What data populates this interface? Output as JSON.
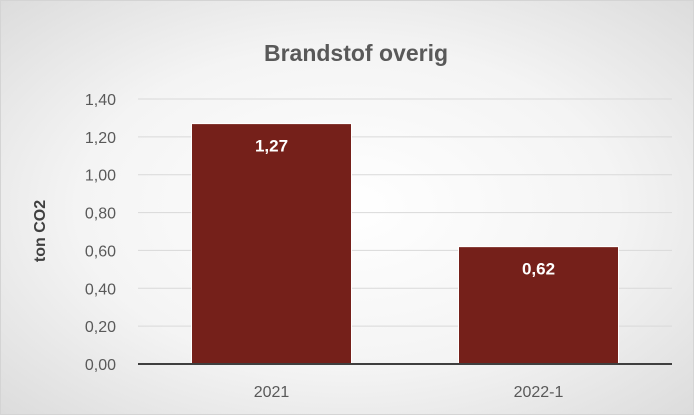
{
  "chart_data": {
    "type": "bar",
    "title": "Brandstof overig",
    "xlabel": "",
    "ylabel": "ton CO2",
    "categories": [
      "2021",
      "2022-1"
    ],
    "values": [
      1.27,
      0.62
    ],
    "data_labels": [
      "1,27",
      "0,62"
    ],
    "ylim": [
      0,
      1.4
    ],
    "y_ticks": [
      0,
      0.2,
      0.4,
      0.6,
      0.8,
      1.0,
      1.2,
      1.4
    ],
    "y_tick_labels": [
      "0,00",
      "0,20",
      "0,40",
      "0,60",
      "0,80",
      "1,00",
      "1,20",
      "1,40"
    ],
    "grid": true,
    "legend": "none",
    "bar_color": "#75201a",
    "gridline_color": "#d9d9d9",
    "axis_line_color": "#3f3f3f"
  }
}
